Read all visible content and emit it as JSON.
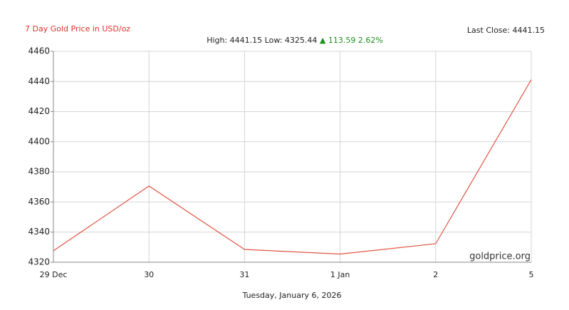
{
  "chart_data": {
    "type": "line",
    "title": "7 Day Gold Price in USD/oz",
    "stats": {
      "high_low": "High: 4441.15 Low: 4325.44",
      "change": "▲ 113.59 2.62%"
    },
    "last_close": "Last Close: 4441.15",
    "watermark": "goldprice.org",
    "x_label": "Tuesday, January 6, 2026",
    "categories": [
      "29 Dec",
      "30",
      "31",
      "1 Jan",
      "2",
      "5"
    ],
    "values": [
      4327.6,
      4370.6,
      4328.5,
      4325.44,
      4332.3,
      4441.15
    ],
    "color": "#e05545",
    "title_color": "#e0302a",
    "change_color": "#1f8f1f",
    "ylim": [
      4320,
      4460
    ],
    "yticks": [
      4320,
      4340,
      4360,
      4380,
      4400,
      4420,
      4440,
      4460
    ],
    "grid": true
  }
}
